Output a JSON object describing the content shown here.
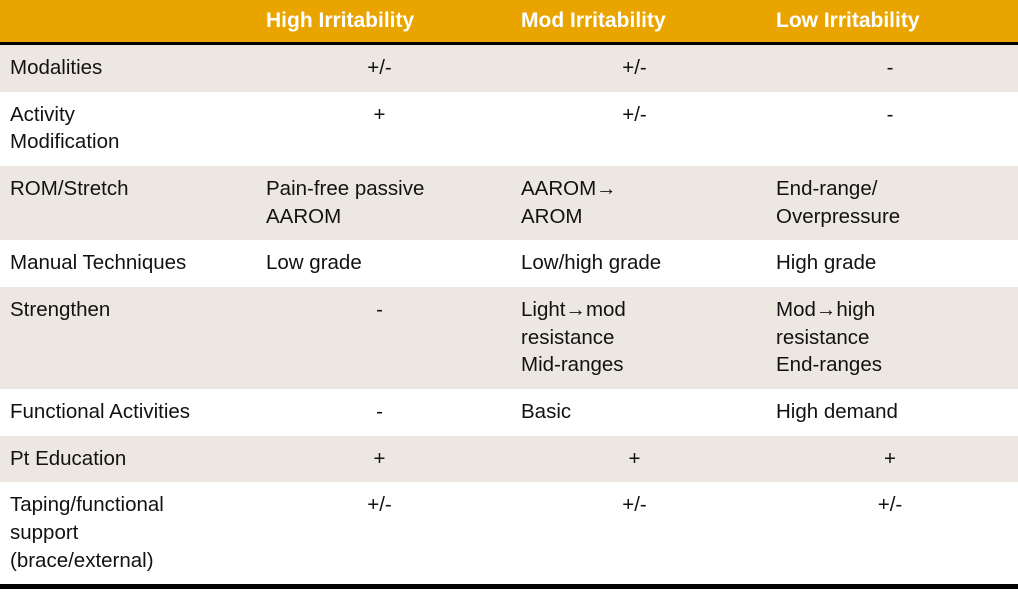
{
  "colors": {
    "header_bg": "#E9A400",
    "header_text": "#FFFFFF",
    "row_alt_bg": "#ECE8E1",
    "border": "#000000"
  },
  "table": {
    "headers": [
      "",
      "High Irritability",
      "Mod Irritability",
      "Low Irritability"
    ],
    "rows": [
      {
        "label": "Modalities",
        "cells": [
          "+/-",
          "+/-",
          "-"
        ]
      },
      {
        "label": "Activity\nModification",
        "cells": [
          "+",
          "+/-",
          "-"
        ]
      },
      {
        "label": "ROM/Stretch",
        "cells": [
          "Pain-free passive\nAAROM",
          "AAROM→\nAROM",
          "End-range/\nOverpressure"
        ]
      },
      {
        "label": "Manual Techniques",
        "cells": [
          "Low grade",
          "Low/high grade",
          "High grade"
        ]
      },
      {
        "label": "Strengthen",
        "cells": [
          "-",
          "Light→mod\nresistance\nMid-ranges",
          "Mod→high\nresistance\nEnd-ranges"
        ]
      },
      {
        "label": "Functional Activities",
        "cells": [
          "-",
          "Basic",
          "High demand"
        ]
      },
      {
        "label": "Pt Education",
        "cells": [
          "+",
          "+",
          "+"
        ]
      },
      {
        "label": "Taping/functional\nsupport\n(brace/external)",
        "cells": [
          "+/-",
          "+/-",
          "+/-"
        ]
      }
    ]
  }
}
